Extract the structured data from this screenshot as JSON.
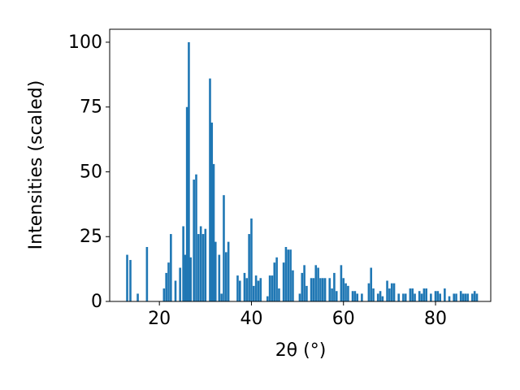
{
  "chart_data": {
    "type": "bar",
    "xlabel": "2θ (°)",
    "ylabel": "Intensities (scaled)",
    "color": "#1f77b4",
    "xlim": [
      9.2,
      92.0
    ],
    "ylim": [
      0,
      105
    ],
    "xticks": [
      20,
      40,
      60,
      80
    ],
    "yticks": [
      0,
      25,
      50,
      75,
      100
    ],
    "x": [
      13.0,
      13.7,
      15.3,
      17.3,
      21.0,
      21.5,
      22.0,
      22.5,
      23.5,
      24.5,
      25.2,
      25.6,
      26.0,
      26.4,
      26.8,
      27.5,
      28.0,
      28.5,
      29.0,
      29.5,
      30.0,
      31.0,
      31.4,
      31.8,
      32.2,
      33.0,
      33.5,
      34.0,
      34.5,
      35.0,
      37.0,
      37.5,
      38.5,
      39.0,
      39.5,
      40.0,
      40.5,
      41.0,
      41.5,
      42.0,
      43.5,
      44.0,
      44.5,
      45.0,
      45.5,
      46.0,
      47.0,
      47.5,
      48.0,
      48.5,
      49.0,
      50.5,
      51.0,
      51.5,
      52.0,
      53.0,
      53.5,
      54.0,
      54.5,
      55.0,
      55.5,
      56.0,
      57.0,
      57.5,
      58.0,
      58.5,
      59.5,
      60.0,
      60.5,
      61.0,
      62.0,
      62.5,
      63.0,
      64.0,
      65.5,
      66.0,
      66.5,
      67.5,
      68.0,
      68.5,
      69.5,
      70.0,
      70.5,
      71.0,
      72.0,
      73.0,
      73.5,
      74.5,
      75.0,
      75.5,
      76.5,
      77.0,
      77.5,
      78.0,
      79.0,
      80.0,
      80.5,
      81.0,
      82.0,
      83.0,
      84.0,
      84.5,
      85.5,
      86.0,
      86.5,
      87.0,
      88.0,
      88.5,
      89.0
    ],
    "values": [
      18,
      16,
      3,
      21,
      5,
      11,
      15,
      26,
      8,
      13,
      29,
      18,
      75,
      100,
      17,
      47,
      49,
      26,
      29,
      26,
      28,
      86,
      69,
      53,
      23,
      18,
      3,
      41,
      19,
      23,
      10,
      8,
      11,
      9,
      26,
      32,
      6,
      10,
      8,
      9,
      2,
      10,
      10,
      15,
      17,
      5,
      15,
      21,
      20,
      20,
      12,
      3,
      11,
      14,
      6,
      9,
      9,
      14,
      13,
      9,
      9,
      9,
      9,
      5,
      11,
      4,
      14,
      9,
      7,
      6,
      4,
      4,
      3,
      3,
      7,
      13,
      5,
      3,
      4,
      2,
      8,
      5,
      7,
      7,
      3,
      3,
      3,
      5,
      5,
      3,
      4,
      3,
      5,
      5,
      3,
      4,
      4,
      3,
      5,
      2,
      3,
      3,
      4,
      3,
      3,
      3,
      3,
      4,
      3
    ]
  }
}
